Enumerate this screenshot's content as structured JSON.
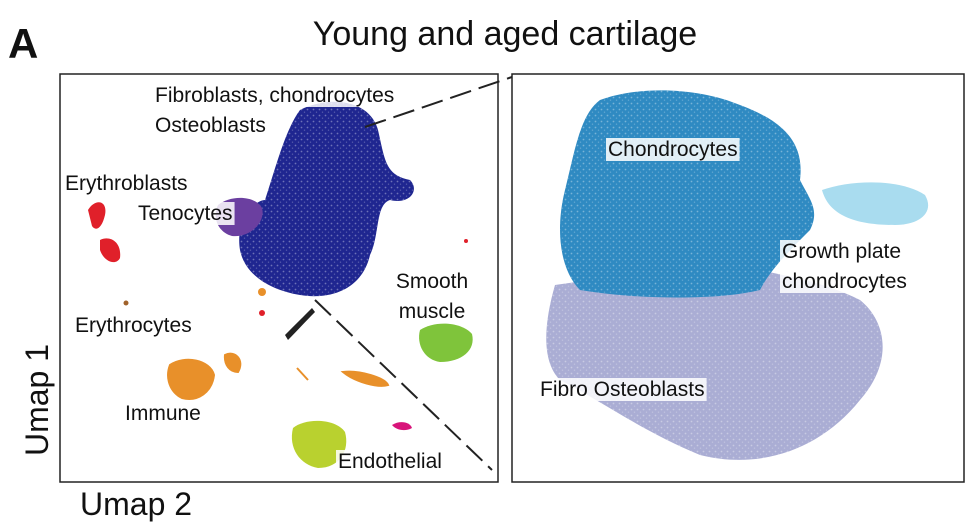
{
  "panel_label": "A",
  "title": "Young and aged cartilage",
  "axes": {
    "y": "Umap 1",
    "x": "Umap 2"
  },
  "overview_clusters": [
    {
      "lines": [
        "Fibroblasts, chondrocytes",
        "Osteoblasts"
      ]
    },
    {
      "lines": [
        "Erythroblasts"
      ]
    },
    {
      "lines": [
        "Tenocytes"
      ]
    },
    {
      "lines": [
        "Smooth",
        "muscle"
      ]
    },
    {
      "lines": [
        "Erythrocytes"
      ]
    },
    {
      "lines": [
        "Immune"
      ]
    },
    {
      "lines": [
        "Endothelial"
      ]
    }
  ],
  "zoom_clusters": [
    {
      "lines": [
        "Chondrocytes"
      ]
    },
    {
      "lines": [
        "Growth plate",
        "chondrocytes"
      ]
    },
    {
      "lines": [
        "Fibro Osteoblasts"
      ]
    }
  ]
}
